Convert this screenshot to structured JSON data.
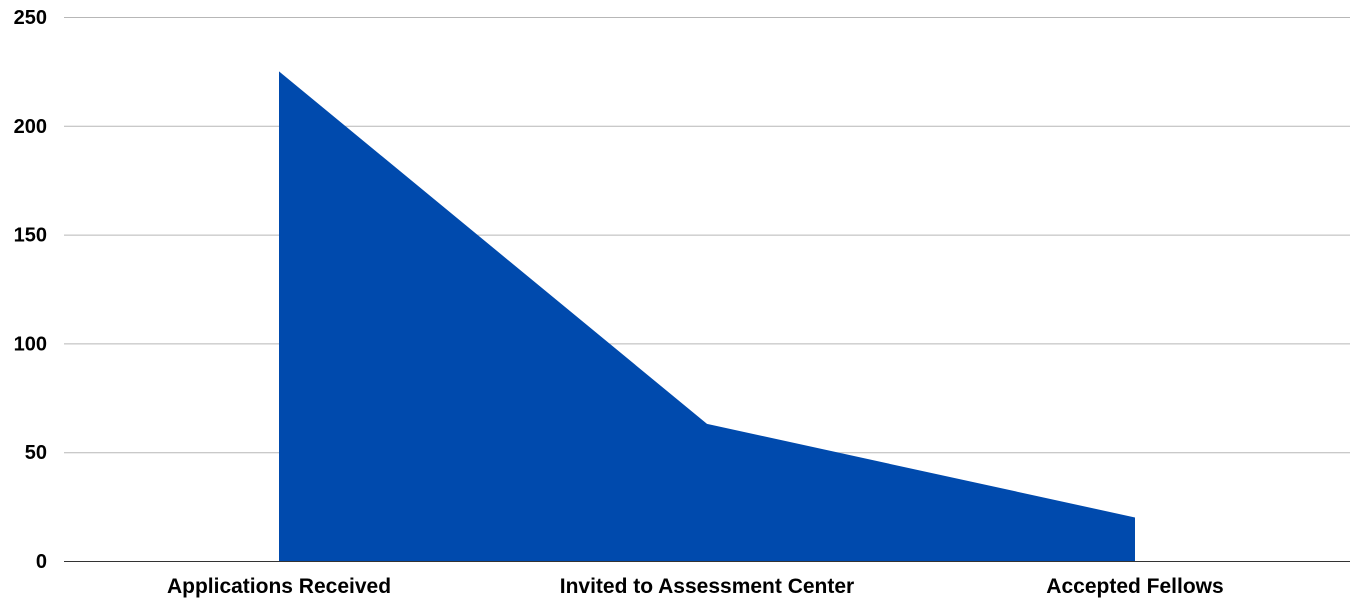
{
  "chart_data": {
    "type": "area",
    "title": "",
    "xlabel": "",
    "ylabel": "",
    "categories": [
      "Applications Received",
      "Invited to Assessment Center",
      "Accepted Fellows"
    ],
    "series": [
      {
        "values": [
          225,
          63,
          20
        ],
        "color": "#004aad"
      }
    ],
    "ylim": [
      0,
      250
    ],
    "yticks": [
      0,
      50,
      100,
      150,
      200,
      250
    ],
    "grid": true,
    "legend": "none"
  }
}
